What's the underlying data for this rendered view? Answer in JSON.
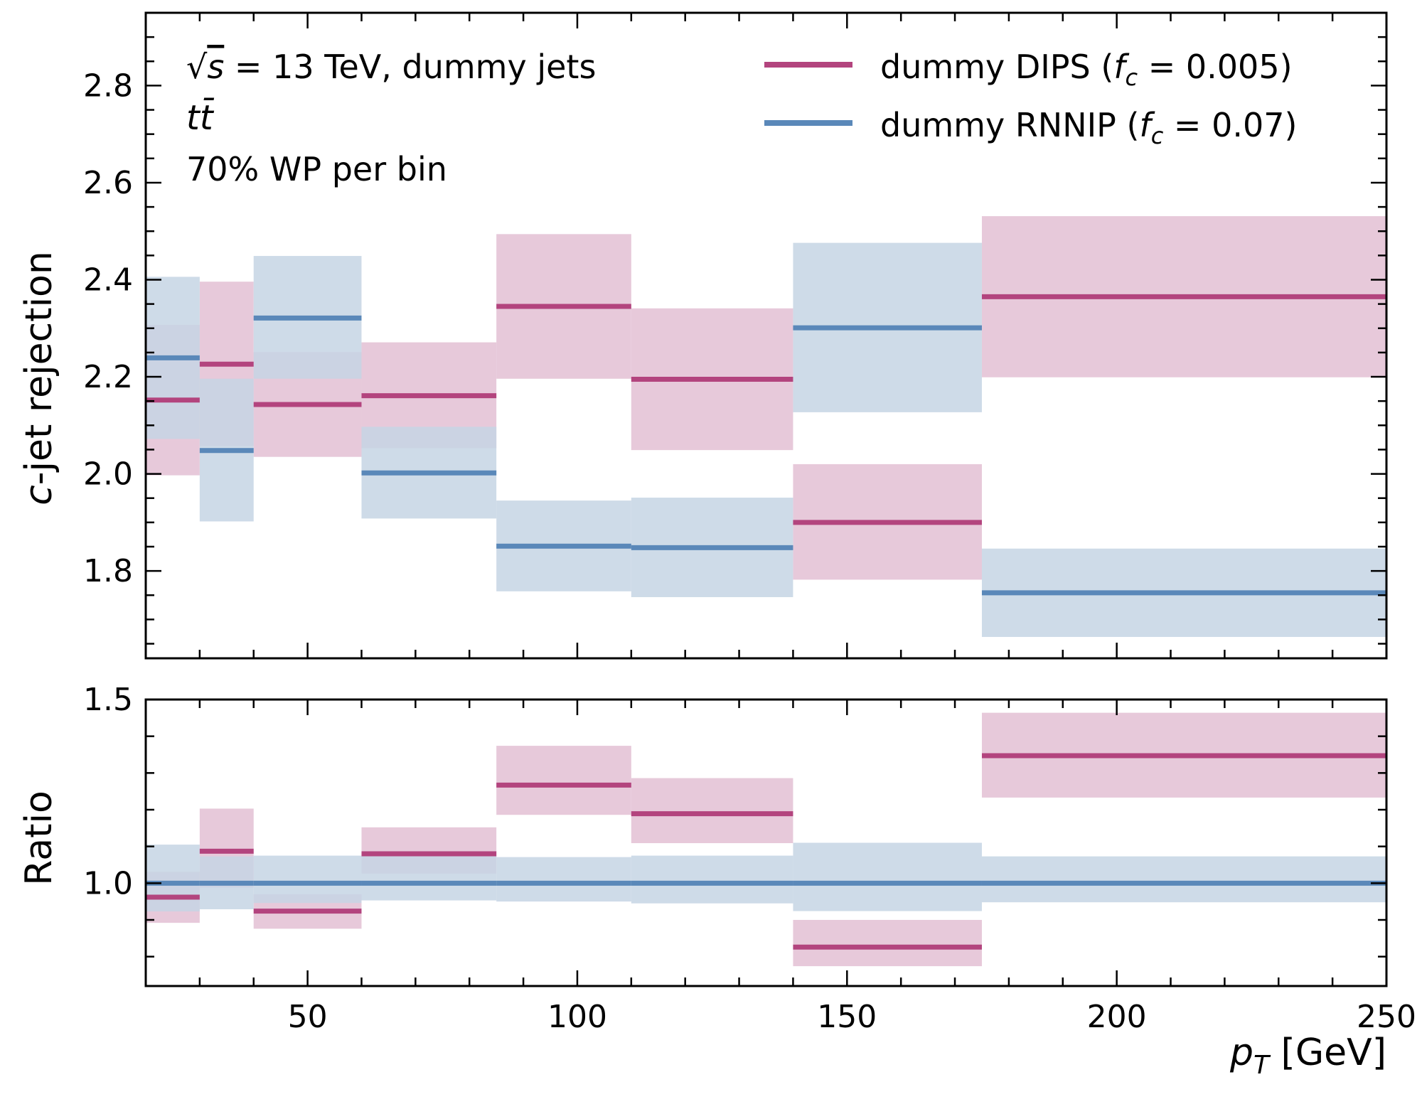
{
  "chart_data": {
    "type": "line",
    "x_unit": "GeV",
    "bins": [
      [
        20,
        30
      ],
      [
        30,
        40
      ],
      [
        40,
        60
      ],
      [
        60,
        85
      ],
      [
        85,
        110
      ],
      [
        110,
        140
      ],
      [
        140,
        175
      ],
      [
        175,
        250
      ]
    ],
    "xlim": [
      20,
      250
    ],
    "xticks": [
      50,
      100,
      150,
      200,
      250
    ],
    "xlabel": {
      "var": "p",
      "sub": "T",
      "unit": " [GeV]"
    },
    "annotations": {
      "line1_pre": "√",
      "line1_var": "s",
      "line1_post": " = 13 TeV, dummy jets",
      "line2": "tt̄",
      "line3": "70% WP per bin"
    },
    "legend": {
      "placement": "top-right",
      "entries": [
        {
          "prefix": "dummy DIPS (",
          "f": "f",
          "sub": "c",
          "suffix": " = 0.005)"
        },
        {
          "prefix": "dummy RNNIP (",
          "f": "f",
          "sub": "c",
          "suffix": " = 0.07)"
        }
      ]
    },
    "main": {
      "ylabel_var": "c",
      "ylabel_rest": "-jet rejection",
      "ylim": [
        1.62,
        2.95
      ],
      "yticks": [
        1.8,
        2.0,
        2.2,
        2.4,
        2.6,
        2.8
      ],
      "ytick_labels": [
        "1.8",
        "2.0",
        "2.2",
        "2.4",
        "2.6",
        "2.8"
      ],
      "series": [
        {
          "name": "dummy DIPS (f_c = 0.005)",
          "color": "#b3447e",
          "band_color": "#e3bfd3",
          "values": [
            2.152,
            2.226,
            2.143,
            2.161,
            2.345,
            2.195,
            1.9,
            2.365
          ],
          "low": [
            1.997,
            2.057,
            2.035,
            2.053,
            2.196,
            2.049,
            1.782,
            2.199
          ],
          "high": [
            2.307,
            2.396,
            2.251,
            2.271,
            2.494,
            2.341,
            2.02,
            2.531
          ]
        },
        {
          "name": "dummy RNNIP (f_c = 0.07)",
          "color": "#5a88b9",
          "band_color": "#c5d5e4",
          "values": [
            2.239,
            2.048,
            2.321,
            2.002,
            1.851,
            1.848,
            2.301,
            1.755
          ],
          "low": [
            2.072,
            1.902,
            2.196,
            1.908,
            1.758,
            1.746,
            2.127,
            1.664
          ],
          "high": [
            2.406,
            2.196,
            2.449,
            2.097,
            1.945,
            1.951,
            2.476,
            1.846
          ]
        }
      ]
    },
    "ratio": {
      "ylabel": "Ratio",
      "ylim": [
        0.72,
        1.5
      ],
      "yticks": [
        1.0,
        1.5
      ],
      "ytick_labels": [
        "1.0",
        "1.5"
      ],
      "series": [
        {
          "name": "dummy DIPS (f_c = 0.005)",
          "color": "#b3447e",
          "band_color": "#e3bfd3",
          "values": [
            0.962,
            1.087,
            0.924,
            1.08,
            1.267,
            1.189,
            0.826,
            1.347
          ],
          "low": [
            0.892,
            0.988,
            0.876,
            1.026,
            1.186,
            1.109,
            0.774,
            1.233
          ],
          "high": [
            1.031,
            1.203,
            0.97,
            1.152,
            1.374,
            1.286,
            0.9,
            1.464
          ]
        },
        {
          "name": "dummy RNNIP (f_c = 0.07)",
          "color": "#5a88b9",
          "band_color": "#c5d5e4",
          "values": [
            1.0,
            1.0,
            1.0,
            1.0,
            1.0,
            1.0,
            1.0,
            1.0
          ],
          "low": [
            0.923,
            0.929,
            0.946,
            0.953,
            0.95,
            0.945,
            0.924,
            0.948
          ],
          "high": [
            1.105,
            1.073,
            1.075,
            1.074,
            1.071,
            1.075,
            1.11,
            1.073
          ]
        }
      ]
    }
  }
}
